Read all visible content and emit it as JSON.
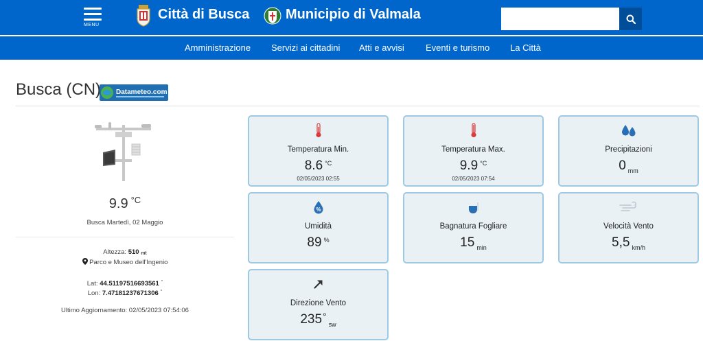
{
  "header": {
    "menu_label": "MENU",
    "site_busca": "Città di Busca",
    "site_valmala": "Municipio di Valmala",
    "search_placeholder": ""
  },
  "nav": {
    "items": [
      {
        "label": "Amministrazione"
      },
      {
        "label": "Servizi ai cittadini"
      },
      {
        "label": "Atti e avvisi"
      },
      {
        "label": "Eventi e turismo"
      },
      {
        "label": "La Città"
      }
    ]
  },
  "page": {
    "title": "Busca (CN)",
    "logo_text": "Datameteo.com"
  },
  "station": {
    "temperature": "9.9",
    "temperature_unit": "°C",
    "place_date": "Busca Martedì, 02 Maggio",
    "altitude_label": "Altezza:",
    "altitude_value": "510",
    "altitude_unit": "mt",
    "location_name": "Parco e Museo dell'Ingenio",
    "lat_label": "Lat:",
    "lat_value": "44.51197516693561",
    "lon_label": "Lon:",
    "lon_value": "7.47181237671306",
    "deg_symbol": "°",
    "last_update_label": "Ultimo Aggiornamento:",
    "last_update_value": "02/05/2023 07:54:06"
  },
  "cards": {
    "temp_min": {
      "label": "Temperatura Min.",
      "value": "8.6",
      "unit": "°C",
      "stamp": "02/05/2023 02:55",
      "icon": "thermometer-icon"
    },
    "temp_max": {
      "label": "Temperatura Max.",
      "value": "9.9",
      "unit": "°C",
      "stamp": "02/05/2023 07:54",
      "icon": "thermometer-icon"
    },
    "precip": {
      "label": "Precipitazioni",
      "value": "0",
      "unit": "mm",
      "icon": "raindrops-icon"
    },
    "humidity": {
      "label": "Umidità",
      "value": "89",
      "unit": "%",
      "icon": "humidity-drop-icon"
    },
    "leaf_wetness": {
      "label": "Bagnatura Fogliare",
      "value": "15",
      "unit": "min",
      "icon": "leaf-wetness-icon"
    },
    "wind_speed": {
      "label": "Velocità Vento",
      "value": "5,5",
      "unit": "km/h",
      "icon": "wind-icon"
    },
    "wind_dir": {
      "label": "Direzione Vento",
      "value": "235",
      "deg": "°",
      "unit": "sw",
      "icon": "arrow-icon"
    }
  },
  "colors": {
    "brand_blue": "#0066cc",
    "search_button": "#004d99",
    "card_bg": "#e9f1f5",
    "card_border": "#9ec9e2",
    "thermometer_red": "#d93c3c",
    "drop_blue": "#2a6fb5"
  }
}
